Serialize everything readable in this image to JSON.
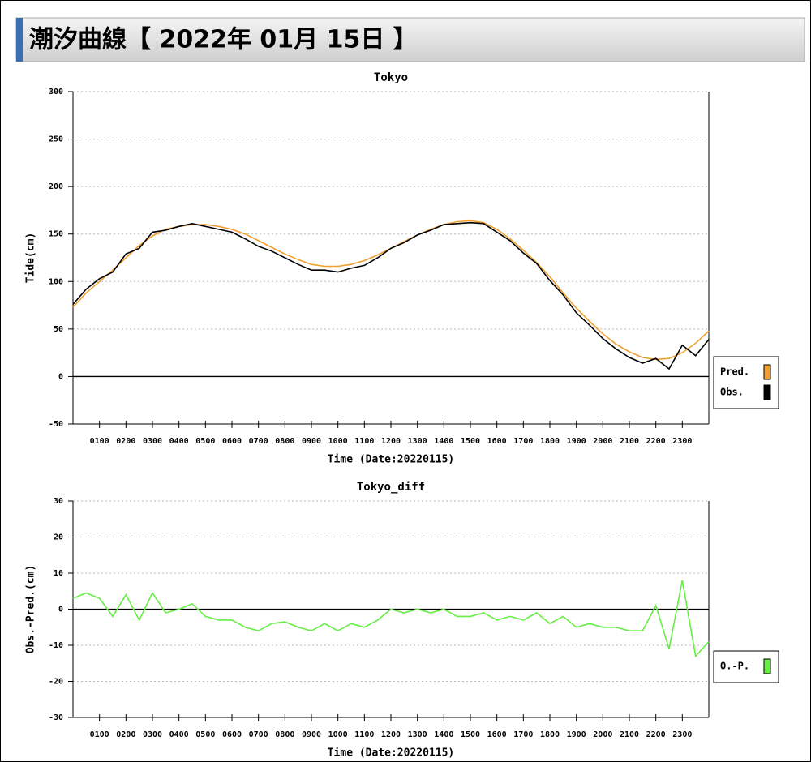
{
  "header": {
    "title": "潮汐曲線【 2022年 01月 15日 】"
  },
  "chart_data": [
    {
      "type": "line",
      "title": "Tokyo",
      "ylabel": "Tide(cm)",
      "xlabel": "Time (Date:20220115)",
      "xlim": [
        0,
        24
      ],
      "xticks": [
        {
          "value": 1,
          "label": "0100"
        },
        {
          "value": 2,
          "label": "0200"
        },
        {
          "value": 3,
          "label": "0300"
        },
        {
          "value": 4,
          "label": "0400"
        },
        {
          "value": 5,
          "label": "0500"
        },
        {
          "value": 6,
          "label": "0600"
        },
        {
          "value": 7,
          "label": "0700"
        },
        {
          "value": 8,
          "label": "0800"
        },
        {
          "value": 9,
          "label": "0900"
        },
        {
          "value": 10,
          "label": "1000"
        },
        {
          "value": 11,
          "label": "1100"
        },
        {
          "value": 12,
          "label": "1200"
        },
        {
          "value": 13,
          "label": "1300"
        },
        {
          "value": 14,
          "label": "1400"
        },
        {
          "value": 15,
          "label": "1500"
        },
        {
          "value": 16,
          "label": "1600"
        },
        {
          "value": 17,
          "label": "1700"
        },
        {
          "value": 18,
          "label": "1800"
        },
        {
          "value": 19,
          "label": "1900"
        },
        {
          "value": 20,
          "label": "2000"
        },
        {
          "value": 21,
          "label": "2100"
        },
        {
          "value": 22,
          "label": "2200"
        },
        {
          "value": 23,
          "label": "2300"
        }
      ],
      "ylim": [
        -50,
        300
      ],
      "yticks": [
        -50,
        0,
        50,
        100,
        150,
        200,
        250,
        300
      ],
      "grid": true,
      "legend": "right",
      "x": [
        0,
        0.5,
        1,
        1.5,
        2,
        2.5,
        3,
        3.5,
        4,
        4.5,
        5,
        5.5,
        6,
        6.5,
        7,
        7.5,
        8,
        8.5,
        9,
        9.5,
        10,
        10.5,
        11,
        11.5,
        12,
        12.5,
        13,
        13.5,
        14,
        14.5,
        15,
        15.5,
        16,
        16.5,
        17,
        17.5,
        18,
        18.5,
        19,
        19.5,
        20,
        20.5,
        21,
        21.5,
        22,
        22.5,
        23,
        23.5,
        24
      ],
      "series": [
        {
          "name": "Pred.",
          "color": "#f0a030",
          "values": [
            73,
            88,
            100,
            112,
            125,
            138,
            148,
            155,
            158,
            160,
            160,
            158,
            155,
            150,
            143,
            136,
            129,
            123,
            118,
            116,
            116,
            118,
            122,
            128,
            135,
            142,
            149,
            155,
            160,
            163,
            164,
            162,
            155,
            145,
            133,
            120,
            105,
            88,
            72,
            58,
            45,
            34,
            26,
            20,
            18,
            19,
            25,
            35,
            48
          ]
        },
        {
          "name": "Obs.",
          "color": "#000000",
          "values": [
            76,
            92,
            103,
            110,
            129,
            135,
            152,
            154,
            158,
            161,
            158,
            155,
            152,
            145,
            137,
            132,
            125,
            118,
            112,
            112,
            110,
            114,
            117,
            125,
            135,
            141,
            149,
            154,
            160,
            161,
            162,
            161,
            152,
            143,
            130,
            119,
            101,
            86,
            67,
            54,
            40,
            29,
            20,
            14,
            19,
            8,
            33,
            22,
            39
          ]
        }
      ]
    },
    {
      "type": "line",
      "title": "Tokyo_diff",
      "ylabel": "Obs.-Pred.(cm)",
      "xlabel": "Time (Date:20220115)",
      "xlim": [
        0,
        24
      ],
      "xticks": [
        {
          "value": 1,
          "label": "0100"
        },
        {
          "value": 2,
          "label": "0200"
        },
        {
          "value": 3,
          "label": "0300"
        },
        {
          "value": 4,
          "label": "0400"
        },
        {
          "value": 5,
          "label": "0500"
        },
        {
          "value": 6,
          "label": "0600"
        },
        {
          "value": 7,
          "label": "0700"
        },
        {
          "value": 8,
          "label": "0800"
        },
        {
          "value": 9,
          "label": "0900"
        },
        {
          "value": 10,
          "label": "1000"
        },
        {
          "value": 11,
          "label": "1100"
        },
        {
          "value": 12,
          "label": "1200"
        },
        {
          "value": 13,
          "label": "1300"
        },
        {
          "value": 14,
          "label": "1400"
        },
        {
          "value": 15,
          "label": "1500"
        },
        {
          "value": 16,
          "label": "1600"
        },
        {
          "value": 17,
          "label": "1700"
        },
        {
          "value": 18,
          "label": "1800"
        },
        {
          "value": 19,
          "label": "1900"
        },
        {
          "value": 20,
          "label": "2000"
        },
        {
          "value": 21,
          "label": "2100"
        },
        {
          "value": 22,
          "label": "2200"
        },
        {
          "value": 23,
          "label": "2300"
        }
      ],
      "ylim": [
        -30,
        30
      ],
      "yticks": [
        -30,
        -20,
        -10,
        0,
        10,
        20,
        30
      ],
      "grid": true,
      "legend": "right",
      "x": [
        0,
        0.5,
        1,
        1.5,
        2,
        2.5,
        3,
        3.5,
        4,
        4.5,
        5,
        5.5,
        6,
        6.5,
        7,
        7.5,
        8,
        8.5,
        9,
        9.5,
        10,
        10.5,
        11,
        11.5,
        12,
        12.5,
        13,
        13.5,
        14,
        14.5,
        15,
        15.5,
        16,
        16.5,
        17,
        17.5,
        18,
        18.5,
        19,
        19.5,
        20,
        20.5,
        21,
        21.5,
        22,
        22.5,
        23,
        23.5,
        24
      ],
      "series": [
        {
          "name": "O.-P.",
          "color": "#66ee44",
          "values": [
            3,
            4.5,
            3,
            -2,
            4,
            -3,
            4.5,
            -1,
            0,
            1.5,
            -2,
            -3,
            -3,
            -5,
            -6,
            -4,
            -3.5,
            -5,
            -6,
            -4,
            -6,
            -4,
            -5,
            -3,
            0,
            -1,
            0,
            -1,
            0,
            -2,
            -2,
            -1,
            -3,
            -2,
            -3,
            -1,
            -4,
            -2,
            -5,
            -4,
            -5,
            -5,
            -6,
            -6,
            1,
            -11,
            8,
            -13,
            -9
          ]
        }
      ]
    }
  ]
}
